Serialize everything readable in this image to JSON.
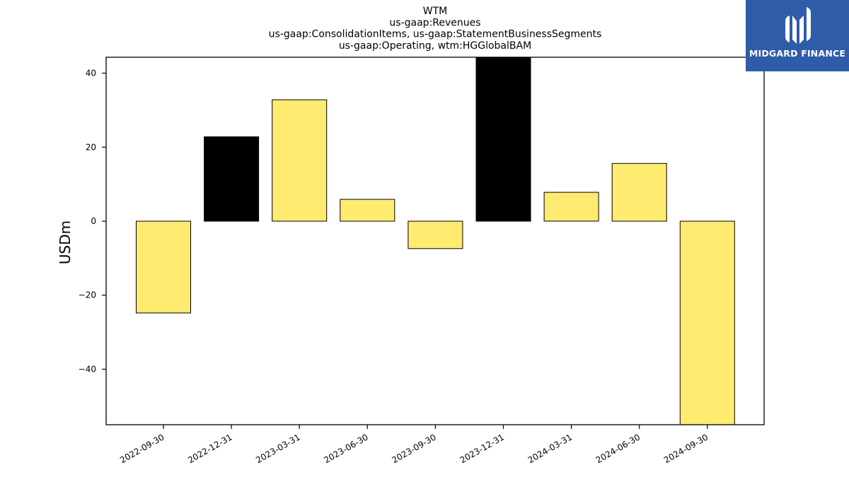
{
  "chart_data": {
    "type": "bar",
    "title_lines": [
      "WTM",
      "us-gaap:Revenues",
      "us-gaap:ConsolidationItems, us-gaap:StatementBusinessSegments",
      "us-gaap:Operating, wtm:HGGlobalBAM"
    ],
    "xlabel": "",
    "ylabel": "USDm",
    "categories": [
      "2022-09-30",
      "2022-12-31",
      "2023-03-31",
      "2023-06-30",
      "2023-09-30",
      "2023-12-31",
      "2024-03-31",
      "2024-06-30",
      "2024-09-30"
    ],
    "values": [
      -24.8,
      22.8,
      32.8,
      5.9,
      -7.4,
      44.5,
      7.8,
      15.6,
      -55.0
    ],
    "bar_colors": [
      "#ffeb70",
      "#000000",
      "#ffeb70",
      "#ffeb70",
      "#ffeb70",
      "#000000",
      "#ffeb70",
      "#ffeb70",
      "#ffeb70"
    ],
    "yticks": [
      -40,
      -20,
      0,
      20,
      40
    ],
    "ylim": [
      -55.0,
      44.3
    ],
    "grid": false,
    "legend": "none"
  },
  "logo": {
    "text": "MIDGARD FINANCE",
    "color": "#2f5ca8"
  }
}
